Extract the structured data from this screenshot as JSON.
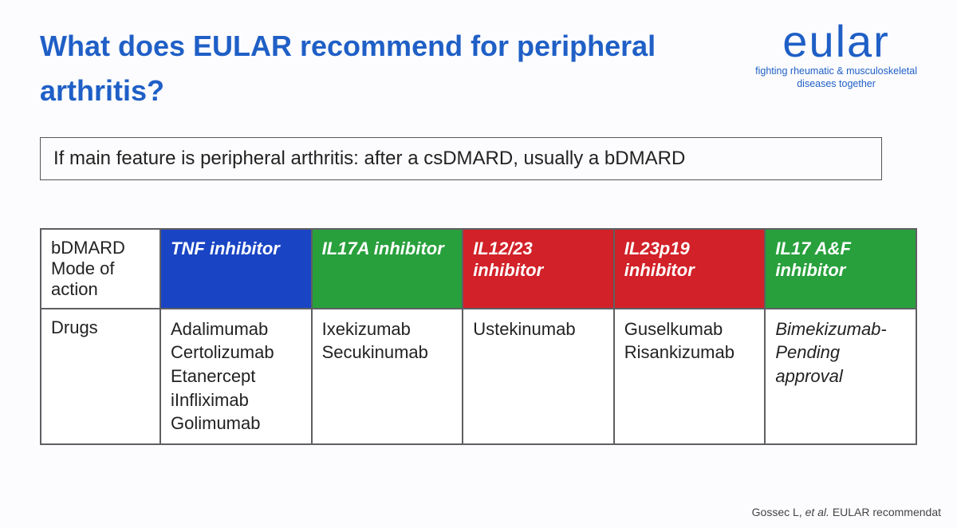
{
  "title": "What does EULAR recommend for peripheral arthritis?",
  "logo": {
    "name": "eular",
    "tagline": "fighting rheumatic & musculoskeletal\ndiseases together"
  },
  "callout": "If main feature is peripheral arthritis: after a csDMARD, usually a bDMARD",
  "colors": {
    "title": "#1f5fc6",
    "border": "#5f5f63",
    "blue": "#1944c4",
    "green": "#28a03c",
    "red": "#d22128",
    "bg": "#fcfcfe"
  },
  "table": {
    "row1_label": "bDMARD Mode of action",
    "row2_label": "Drugs",
    "columns": [
      {
        "header": "TNF inhibitor",
        "color_key": "blue",
        "drugs": "Adalimumab\nCertolizumab\nEtanercept\niInfliximab\nGolimumab"
      },
      {
        "header": "IL17A inhibitor",
        "color_key": "green",
        "drugs": "Ixekizumab\nSecukinumab"
      },
      {
        "header": "IL12/23 inhibitor",
        "color_key": "red",
        "drugs": "Ustekinumab"
      },
      {
        "header": "IL23p19 inhibitor",
        "color_key": "red",
        "drugs": "Guselkumab\nRisankizumab"
      },
      {
        "header": "IL17 A&F inhibitor",
        "color_key": "green",
        "drugs": "Bimekizumab- Pending approval",
        "italic": true
      }
    ]
  },
  "citation": {
    "lead": "Gossec L, ",
    "ital": "et al.",
    "tail": " EULAR recommendat"
  }
}
